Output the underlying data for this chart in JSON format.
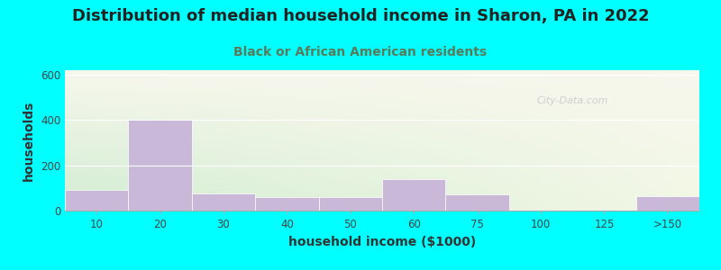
{
  "title": "Distribution of median household income in Sharon, PA in 2022",
  "subtitle": "Black or African American residents",
  "xlabel": "household income ($1000)",
  "ylabel": "households",
  "background_color": "#00FFFF",
  "bar_color": "#C9B8D8",
  "bar_edgecolor": "#C9B8D8",
  "categories": [
    "10",
    "20",
    "30",
    "40",
    "50",
    "60",
    "75",
    "100",
    "125",
    ">150"
  ],
  "values": [
    90,
    400,
    75,
    60,
    60,
    140,
    70,
    5,
    2,
    65
  ],
  "ylim": [
    0,
    620
  ],
  "yticks": [
    0,
    200,
    400,
    600
  ],
  "title_fontsize": 13,
  "subtitle_fontsize": 10,
  "axis_label_fontsize": 10,
  "tick_fontsize": 8.5,
  "watermark_text": "City-Data.com",
  "subtitle_color": "#5a7a5a",
  "title_color": "#222222",
  "axis_label_color": "#333333",
  "gradient_colors": [
    "#e8f0d8",
    "#f8f8ee"
  ],
  "grid_color": "#ffffff",
  "watermark_color": "#c0c0c0"
}
